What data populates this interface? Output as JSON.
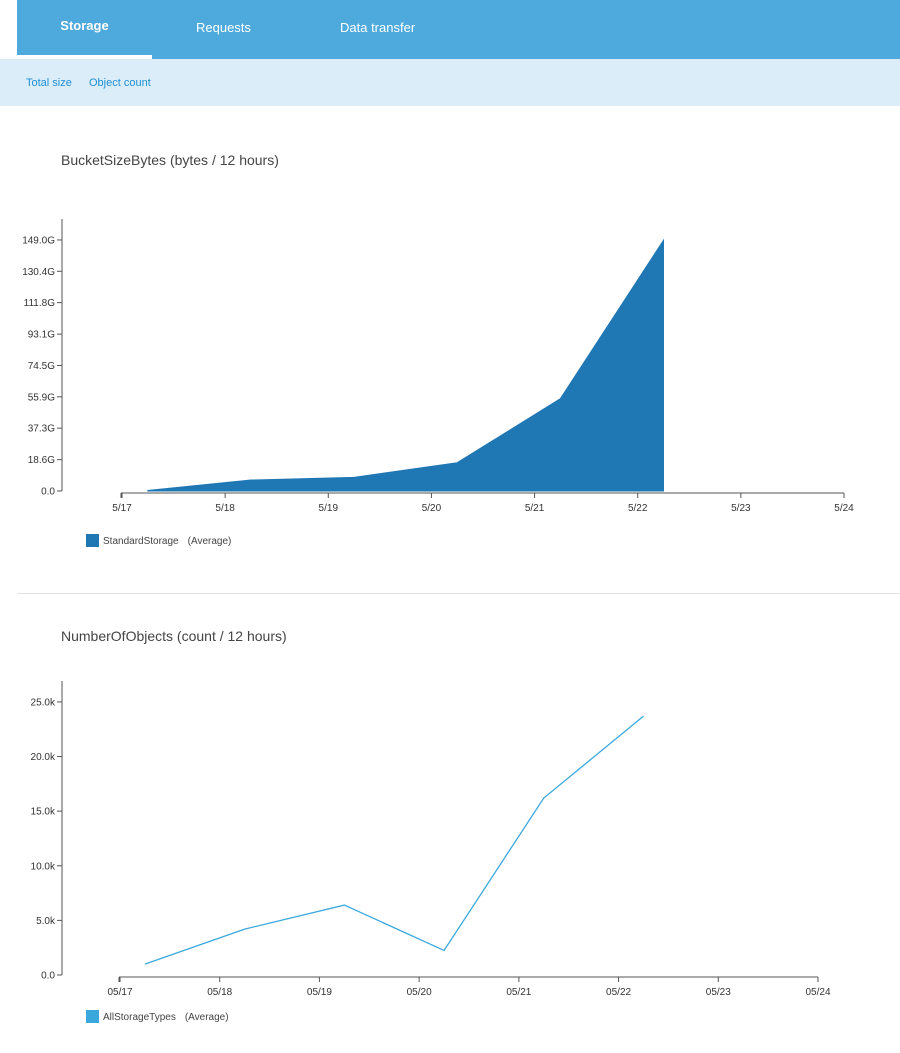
{
  "tabs": [
    {
      "label": "Storage",
      "active": true
    },
    {
      "label": "Requests",
      "active": false
    },
    {
      "label": "Data transfer",
      "active": false
    }
  ],
  "sub_links": [
    {
      "label": "Total size"
    },
    {
      "label": "Object count"
    }
  ],
  "colors": {
    "topbar": "#4ea9dc",
    "subbar": "#daedf8",
    "area_fill": "#1f77b4",
    "line_stroke": "#3aa8dd"
  },
  "chart_data": [
    {
      "type": "area",
      "title": "BucketSizeBytes (bytes / 12 hours)",
      "xlabel": "",
      "ylabel": "",
      "x_ticks": [
        "5/17",
        "5/18",
        "5/19",
        "5/20",
        "5/21",
        "5/22",
        "5/23",
        "5/24"
      ],
      "y_ticks": [
        "0.0",
        "18.6G",
        "37.3G",
        "55.9G",
        "74.5G",
        "93.1G",
        "111.8G",
        "130.4G",
        "149.0G"
      ],
      "y_tick_values": [
        0,
        18.6,
        37.3,
        55.9,
        74.5,
        93.1,
        111.8,
        130.4,
        149.0
      ],
      "ylim": [
        0,
        155.5
      ],
      "xlim": [
        0,
        7
      ],
      "series": [
        {
          "name": "StandardStorage",
          "stat": "(Average)",
          "x": [
            0.25,
            1.25,
            2.25,
            3.25,
            4.25,
            5.25
          ],
          "values": [
            0.3,
            6.5,
            8.1,
            16.8,
            54.8,
            148.8
          ]
        }
      ],
      "legend": "bottom-left"
    },
    {
      "type": "line",
      "title": "NumberOfObjects (count / 12 hours)",
      "xlabel": "",
      "ylabel": "",
      "x_ticks": [
        "05/17",
        "05/18",
        "05/19",
        "05/20",
        "05/21",
        "05/22",
        "05/23",
        "05/24"
      ],
      "y_ticks": [
        "0.0",
        "5.0k",
        "10.0k",
        "15.0k",
        "20.0k",
        "25.0k"
      ],
      "y_tick_values": [
        0,
        5000,
        10000,
        15000,
        20000,
        25000
      ],
      "ylim": [
        0,
        26000
      ],
      "xlim": [
        0,
        7
      ],
      "series": [
        {
          "name": "AllStorageTypes",
          "stat": "(Average)",
          "x": [
            0.25,
            1.25,
            2.25,
            3.25,
            4.25,
            5.25
          ],
          "values": [
            1000,
            4200,
            6400,
            2250,
            16200,
            23700
          ]
        }
      ],
      "legend": "bottom-left"
    }
  ]
}
